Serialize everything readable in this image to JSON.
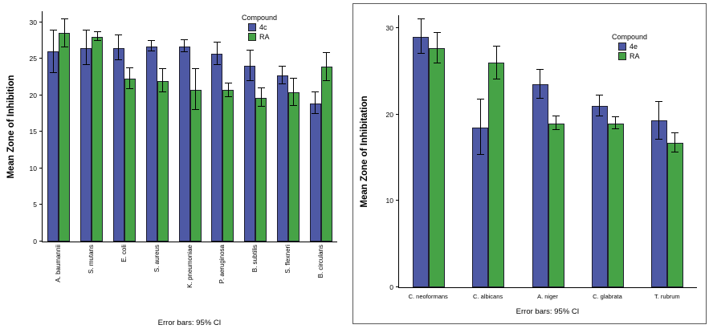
{
  "chart_data": [
    {
      "type": "bar",
      "ylabel": "Mean Zone of Inhibition",
      "caption": "Error bars: 95% CI",
      "legend_title": "Compound",
      "legend_position": "top-right-inside",
      "grid": false,
      "ylim": [
        0,
        31.5
      ],
      "yticks": [
        0,
        5,
        10,
        15,
        20,
        25,
        30
      ],
      "label_rotation": "vertical",
      "categories": [
        "A. baumannii",
        "S. mutans",
        "E. coli",
        "S. aureus",
        "K. pneumoniae",
        "P. aeruginosa",
        "B. subtilis",
        "S. flexneri",
        "B. circulans"
      ],
      "series": [
        {
          "name": "4c",
          "color": "#4e59a5",
          "values": [
            26.0,
            26.5,
            26.5,
            26.7,
            26.7,
            25.7,
            24.0,
            22.7,
            18.9
          ],
          "errors": [
            2.9,
            2.4,
            1.7,
            0.7,
            0.8,
            1.5,
            2.1,
            1.2,
            1.5
          ]
        },
        {
          "name": "RA",
          "color": "#46a346",
          "values": [
            28.5,
            28.0,
            22.3,
            22.0,
            20.8,
            20.7,
            19.7,
            20.4,
            23.9
          ],
          "errors": [
            1.9,
            0.6,
            1.4,
            1.6,
            2.8,
            0.9,
            1.3,
            1.9,
            1.9
          ]
        }
      ]
    },
    {
      "type": "bar",
      "ylabel": "Mean Zone of Inhibitation",
      "caption": "Error bars: 95% CI",
      "legend_title": "Compound",
      "legend_position": "top-right-inside",
      "grid": false,
      "ylim": [
        0,
        31.5
      ],
      "yticks": [
        0,
        10,
        20,
        30
      ],
      "label_rotation": "horizontal",
      "categories": [
        "C. neoformans",
        "C. albicans",
        "A. niger",
        "C. glabrata",
        "T. rubrum"
      ],
      "series": [
        {
          "name": "4e",
          "color": "#4e59a5",
          "values": [
            29.0,
            18.5,
            23.5,
            21.0,
            19.3
          ],
          "errors": [
            2.0,
            3.2,
            1.7,
            1.2,
            2.2
          ]
        },
        {
          "name": "RA",
          "color": "#46a346",
          "values": [
            27.7,
            26.0,
            19.0,
            19.0,
            16.7
          ],
          "errors": [
            1.8,
            1.9,
            0.8,
            0.7,
            1.1
          ]
        }
      ]
    }
  ]
}
